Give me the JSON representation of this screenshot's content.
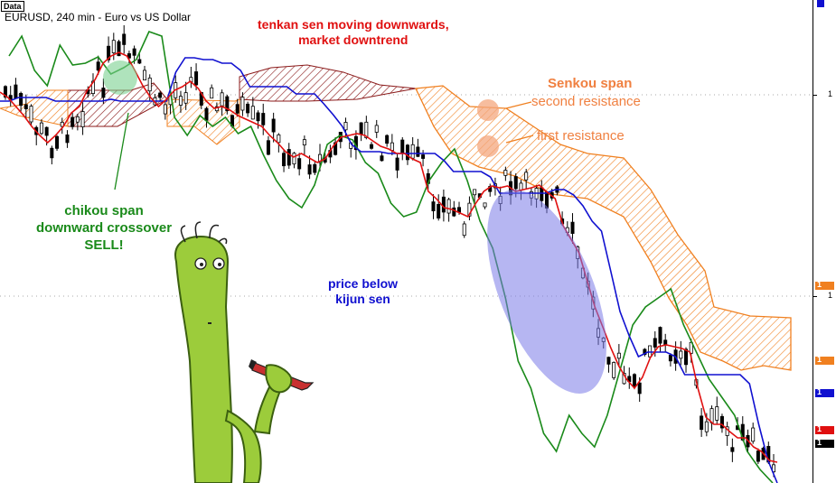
{
  "tag": "Data",
  "symbol": "EURUSD, 240 min - Euro vs US Dollar",
  "annotations": {
    "tenkan": "tenkan sen moving downwards,\nmarket downtrend",
    "senkou_title": "Senkou span",
    "second_resistance": "second resistance",
    "first_resistance": "first resistance",
    "chikou": "chikou span\ndownward crossover\nSELL!",
    "kijun": "price below\nkijun sen"
  },
  "axis": {
    "digits": [
      "1",
      "1"
    ],
    "markers": [
      {
        "label": "1",
        "color": "#f08020"
      },
      {
        "label": "1",
        "color": "#f08020"
      },
      {
        "label": "1",
        "color": "#1010d0"
      },
      {
        "label": "1",
        "color": "#e01010"
      },
      {
        "label": "1",
        "color": "#000000"
      }
    ]
  },
  "chart_data": {
    "type": "line",
    "title": "EURUSD, 240 min - Euro vs US Dollar",
    "colors": {
      "tenkan": "#e01010",
      "kijun": "#1010d0",
      "chikou": "#1a8a1a",
      "senkou": "#f08020",
      "cloud_bear": "#8b1a1a",
      "highlight": "#7a7ae8",
      "bubble_green": "#7ad090",
      "bubble_orange": "#f4a77e"
    },
    "series": [
      {
        "name": "tenkan sen",
        "values": [
          102,
          108,
          118,
          128,
          140,
          150,
          158,
          150,
          140,
          125,
          118,
          100,
          88,
          70,
          62,
          58,
          62,
          78,
          95,
          108,
          118,
          110,
          100,
          96,
          90,
          98,
          112,
          120,
          118,
          122,
          128,
          132,
          136,
          140,
          150,
          158,
          168,
          174,
          170,
          175,
          180,
          176,
          162,
          152,
          150,
          148,
          150,
          156,
          162,
          165,
          170,
          170,
          176,
          180,
          212,
          220,
          230,
          232,
          236,
          240,
          225,
          212,
          206,
          208,
          206,
          212,
          210,
          208,
          205,
          213,
          220,
          250,
          265,
          280,
          310,
          340,
          362,
          385,
          405,
          420,
          430,
          418,
          396,
          384,
          382,
          384,
          386,
          390,
          430,
          462,
          470,
          470,
          478,
          485,
          485,
          495,
          500,
          510,
          512
        ]
      },
      {
        "name": "kijun sen",
        "values": [
          112,
          112,
          108,
          108,
          108,
          108,
          112,
          112,
          112,
          112,
          112,
          112,
          110,
          112,
          112,
          112,
          112,
          112,
          112,
          80,
          64,
          64,
          66,
          66,
          70,
          70,
          78,
          96,
          96,
          96,
          96,
          96,
          104,
          104,
          104,
          115,
          127,
          140,
          160,
          168,
          168,
          168,
          170,
          170,
          170,
          170,
          170,
          170,
          178,
          190,
          190,
          190,
          190,
          196,
          214,
          214,
          214,
          214,
          214,
          214,
          210,
          210,
          216,
          228,
          245,
          256,
          300,
          345,
          372,
          395,
          390,
          390,
          390,
          395,
          415,
          415,
          415,
          415,
          415,
          415,
          415,
          425,
          470,
          510,
          535
        ]
      },
      {
        "name": "chikou span",
        "values": [
          62,
          40,
          78,
          95,
          50,
          72,
          70,
          63,
          82,
          75,
          66,
          35,
          40,
          130,
          150,
          128,
          140,
          130,
          148,
          140,
          172,
          200,
          220,
          230,
          205,
          160,
          150,
          155,
          180,
          192,
          225,
          240,
          235,
          200,
          180,
          165,
          200,
          245,
          275,
          330,
          400,
          430,
          480,
          500,
          460,
          480,
          495,
          460,
          410,
          360,
          340,
          330,
          320,
          360,
          390,
          420,
          440,
          460,
          500,
          520,
          535
        ]
      }
    ]
  }
}
